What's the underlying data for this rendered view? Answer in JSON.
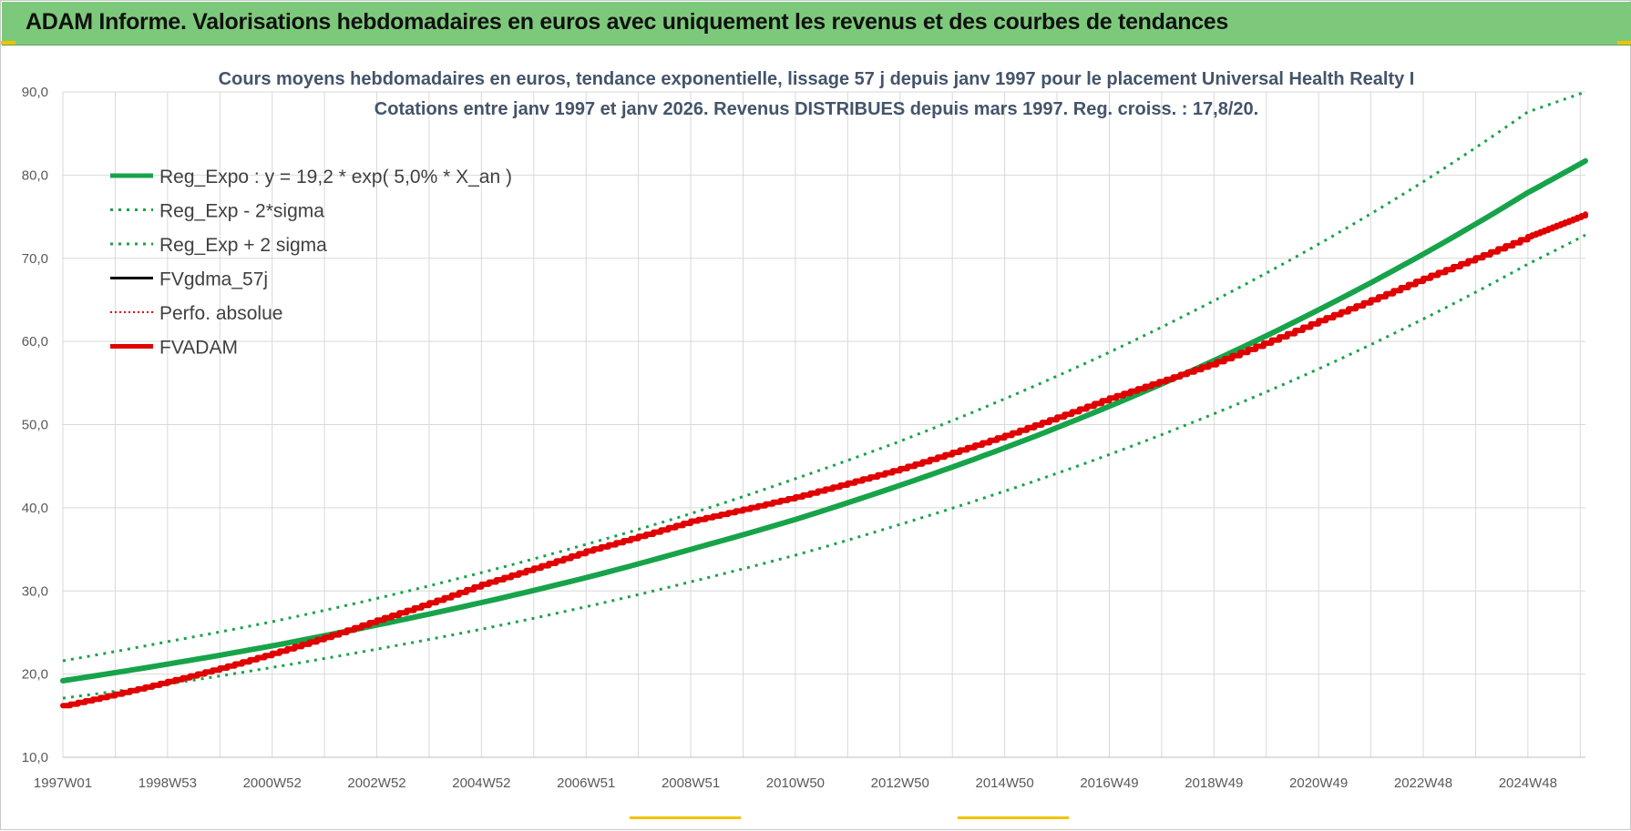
{
  "header": {
    "title": "ADAM Informe. Valorisations hebdomadaires en euros avec uniquement les revenus et des courbes de tendances"
  },
  "colors": {
    "banner": "#7dc97b",
    "trend": "#17a34a",
    "band": "#17a34a",
    "fvgdma": "#000000",
    "perfo": "#e00000",
    "fvadam": "#e00000",
    "grid": "#d9d9d9"
  },
  "chart_data": {
    "type": "line",
    "title_lines": [
      "Cours moyens hebdomadaires en euros, tendance exponentielle, lissage 57 j depuis janv 1997  pour le placement Universal Health Realty I",
      "Cotations entre janv 1997 et janv 2026. Revenus DISTRIBUES depuis mars 1997. Reg. croiss. : 17,8/20."
    ],
    "xlabel": "",
    "ylabel": "",
    "ylim": [
      10,
      90
    ],
    "yticks": [
      "10,0",
      "20,0",
      "30,0",
      "40,0",
      "50,0",
      "60,0",
      "70,0",
      "80,0",
      "90,0"
    ],
    "xlim": [
      1997.0,
      2026.1
    ],
    "xtick_labels": [
      "1997W01",
      "1998W53",
      "2000W52",
      "2002W52",
      "2004W52",
      "2006W51",
      "2008W51",
      "2010W50",
      "2012W50",
      "2014W50",
      "2016W49",
      "2018W49",
      "2020W49",
      "2022W48",
      "2024W48"
    ],
    "grid": true,
    "legend_position": "top-left",
    "series": [
      {
        "name": "Reg_Expo : y = 19,2 * exp( 5,0% *  X_an )",
        "style": "solid-thick",
        "x": [
          1997,
          1999,
          2001,
          2003,
          2005,
          2007,
          2009,
          2011,
          2013,
          2015,
          2017,
          2019,
          2021,
          2023,
          2025,
          2026.1
        ],
        "y": [
          19.2,
          21.2,
          23.4,
          25.9,
          28.6,
          31.6,
          35.0,
          38.6,
          42.7,
          47.2,
          52.2,
          57.7,
          63.8,
          70.5,
          77.9,
          81.7
        ]
      },
      {
        "name": "Reg_Exp - 2*sigma",
        "style": "dotted",
        "x": [
          1997,
          1999,
          2001,
          2003,
          2005,
          2007,
          2009,
          2011,
          2013,
          2015,
          2017,
          2019,
          2021,
          2023,
          2025,
          2026.1
        ],
        "y": [
          17.1,
          18.8,
          20.8,
          23.0,
          25.4,
          28.1,
          31.1,
          34.3,
          38.0,
          42.0,
          46.4,
          51.3,
          56.7,
          62.7,
          69.3,
          72.8
        ]
      },
      {
        "name": "Reg_Exp + 2 sigma",
        "style": "dotted",
        "x": [
          1997,
          1999,
          2001,
          2003,
          2005,
          2007,
          2009,
          2011,
          2013,
          2015,
          2017,
          2019,
          2021,
          2023,
          2025,
          2026.1
        ],
        "y": [
          21.6,
          23.9,
          26.3,
          29.1,
          32.2,
          35.6,
          39.3,
          43.5,
          48.0,
          53.1,
          58.7,
          64.9,
          71.7,
          79.2,
          87.6,
          90.0
        ]
      },
      {
        "name": "FVgdma_57j",
        "style": "solid-black",
        "x": [],
        "y": []
      },
      {
        "name": "Perfo. absolue",
        "style": "dotted-red",
        "x": [],
        "y": []
      },
      {
        "name": "FVADAM",
        "style": "solid-red",
        "x": [
          1997,
          1999,
          2001,
          2003,
          2005,
          2007,
          2009,
          2011,
          2013,
          2015,
          2017,
          2018.9,
          2021,
          2023,
          2025,
          2026.1
        ],
        "y": [
          16.2,
          19.1,
          22.5,
          26.5,
          30.8,
          34.8,
          38.4,
          41.3,
          44.7,
          48.7,
          53.2,
          57.2,
          62.5,
          67.6,
          72.6,
          75.3
        ]
      }
    ]
  }
}
